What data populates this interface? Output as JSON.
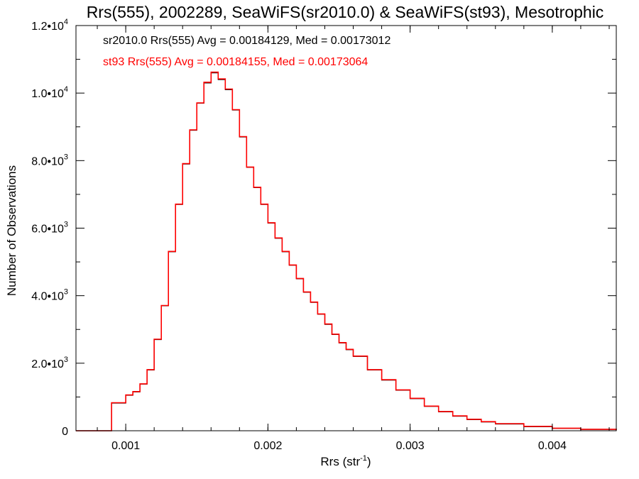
{
  "chart_data": {
    "type": "histogram",
    "title": "Rrs(555), 2002289, SeaWiFS(sr2010.0) & SeaWiFS(st93), Mesotrophic",
    "xlabel": "Rrs (str",
    "xlabel_exponent": "-1",
    "xlabel_suffix": ")",
    "ylabel": "Number of Observations",
    "xlim": [
      0.00065,
      0.00445
    ],
    "ylim": [
      0,
      12000
    ],
    "x_ticks": [
      {
        "value": 0.001,
        "label": "0.001"
      },
      {
        "value": 0.002,
        "label": "0.002"
      },
      {
        "value": 0.003,
        "label": "0.003"
      },
      {
        "value": 0.004,
        "label": "0.004"
      }
    ],
    "y_ticks": [
      {
        "value": 0,
        "mantissa": "0",
        "exponent": ""
      },
      {
        "value": 2000,
        "mantissa": "2.0•10",
        "exponent": "3"
      },
      {
        "value": 4000,
        "mantissa": "4.0•10",
        "exponent": "3"
      },
      {
        "value": 6000,
        "mantissa": "6.0•10",
        "exponent": "3"
      },
      {
        "value": 8000,
        "mantissa": "8.0•10",
        "exponent": "3"
      },
      {
        "value": 10000,
        "mantissa": "1.0•10",
        "exponent": "4"
      },
      {
        "value": 12000,
        "mantissa": "1.2•10",
        "exponent": "4"
      }
    ],
    "annotations": [
      {
        "text": "sr2010.0 Rrs(555) Avg = 0.00184129, Med = 0.00173012",
        "color": "#000000"
      },
      {
        "text": "st93 Rrs(555) Avg = 0.00184155, Med = 0.00173064",
        "color": "#ff0000"
      }
    ],
    "series": [
      {
        "color": "#000000",
        "x": [
          0.00065,
          0.0008,
          0.0009,
          0.001,
          0.00105,
          0.0011,
          0.00115,
          0.0012,
          0.00125,
          0.0013,
          0.00135,
          0.0014,
          0.00145,
          0.0015,
          0.00155,
          0.0016,
          0.00165,
          0.0017,
          0.00175,
          0.0018,
          0.00185,
          0.0019,
          0.00195,
          0.002,
          0.00205,
          0.0021,
          0.00215,
          0.0022,
          0.00225,
          0.0023,
          0.00235,
          0.0024,
          0.00245,
          0.0025,
          0.00255,
          0.0026,
          0.0027,
          0.0028,
          0.0029,
          0.003,
          0.0031,
          0.0032,
          0.0033,
          0.0034,
          0.0035,
          0.0036,
          0.0038,
          0.004,
          0.0042,
          0.00445
        ],
        "y": [
          0,
          0,
          820,
          1050,
          1150,
          1380,
          1800,
          2700,
          3700,
          5300,
          6700,
          7900,
          8900,
          9700,
          10300,
          10600,
          10400,
          10100,
          9500,
          8700,
          7800,
          7200,
          6700,
          6150,
          5700,
          5300,
          4900,
          4500,
          4100,
          3800,
          3450,
          3150,
          2850,
          2600,
          2400,
          2200,
          1800,
          1500,
          1200,
          950,
          720,
          560,
          430,
          330,
          260,
          200,
          120,
          70,
          40,
          15
        ]
      },
      {
        "color": "#ff0000",
        "x": [
          0.00065,
          0.0008,
          0.0009,
          0.001,
          0.00105,
          0.0011,
          0.00115,
          0.0012,
          0.00125,
          0.0013,
          0.00135,
          0.0014,
          0.00145,
          0.0015,
          0.00155,
          0.0016,
          0.00165,
          0.0017,
          0.00175,
          0.0018,
          0.00185,
          0.0019,
          0.00195,
          0.002,
          0.00205,
          0.0021,
          0.00215,
          0.0022,
          0.00225,
          0.0023,
          0.00235,
          0.0024,
          0.00245,
          0.0025,
          0.00255,
          0.0026,
          0.0027,
          0.0028,
          0.0029,
          0.003,
          0.0031,
          0.0032,
          0.0033,
          0.0034,
          0.0035,
          0.0036,
          0.0038,
          0.004,
          0.0042,
          0.00445
        ],
        "y": [
          0,
          0,
          830,
          1060,
          1160,
          1390,
          1810,
          2710,
          3710,
          5310,
          6710,
          7910,
          8910,
          9710,
          10320,
          10620,
          10420,
          10120,
          9510,
          8710,
          7810,
          7210,
          6710,
          6160,
          5710,
          5310,
          4910,
          4510,
          4110,
          3810,
          3460,
          3160,
          2860,
          2610,
          2410,
          2210,
          1810,
          1510,
          1210,
          960,
          730,
          570,
          440,
          340,
          270,
          210,
          130,
          75,
          45,
          18
        ]
      }
    ]
  }
}
